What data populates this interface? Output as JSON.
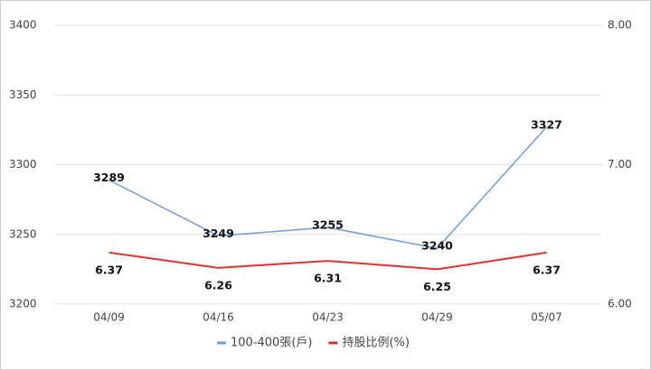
{
  "chart_data": {
    "type": "line",
    "categories": [
      "04/09",
      "04/16",
      "04/23",
      "04/29",
      "05/07"
    ],
    "series": [
      {
        "name": "100-400張(戶)",
        "color": "#6f9be0",
        "values": [
          3289,
          3249,
          3255,
          3240,
          3327
        ]
      },
      {
        "name": "持股比例(%)",
        "color": "#e03030",
        "axis": "y2",
        "values": [
          6.37,
          6.26,
          6.31,
          6.25,
          6.37
        ]
      }
    ],
    "ylim": [
      3200,
      3400
    ],
    "yticks": [
      3200,
      3250,
      3300,
      3350,
      3400
    ],
    "y2lim": [
      6,
      8
    ],
    "y2ticks": [
      {
        "value": 6,
        "label": "6.00"
      },
      {
        "value": 7,
        "label": "7.00"
      },
      {
        "value": 8,
        "label": "8.00"
      }
    ],
    "grid": true,
    "legend": "bottom"
  }
}
